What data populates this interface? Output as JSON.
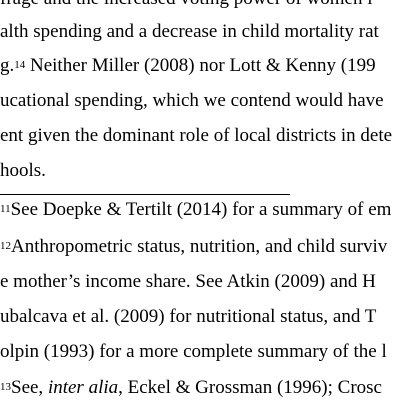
{
  "body_lines": [
    {
      "text": "frage and the increased voting power of women l"
    },
    {
      "text": "alth spending and a decrease in child mortality rat"
    },
    {
      "pre": "g.",
      "sup": "14",
      "post": "  Neither Miller (2008) nor Lott & Kenny (199"
    },
    {
      "text": "ucational spending, which we contend would have"
    },
    {
      "text": "ent given the dominant role of local districts in dete"
    },
    {
      "text": "hools."
    }
  ],
  "footnotes": [
    {
      "sup": "11",
      "post": "See Doepke & Tertilt (2014) for a summary of em"
    },
    {
      "sup": "12",
      "post": "Anthropometric status, nutrition, and child surviv"
    },
    {
      "text": "e mother’s income share.  See Atkin (2009) and H"
    },
    {
      "text": "ubalcava et al. (2009) for nutritional status, and T"
    },
    {
      "text": "olpin (1993) for a more complete summary of the l"
    },
    {
      "sup": "13",
      "pre": "See, ",
      "italic": "inter alia",
      "post": ", Eckel & Grossman (1996); Crosc"
    }
  ]
}
